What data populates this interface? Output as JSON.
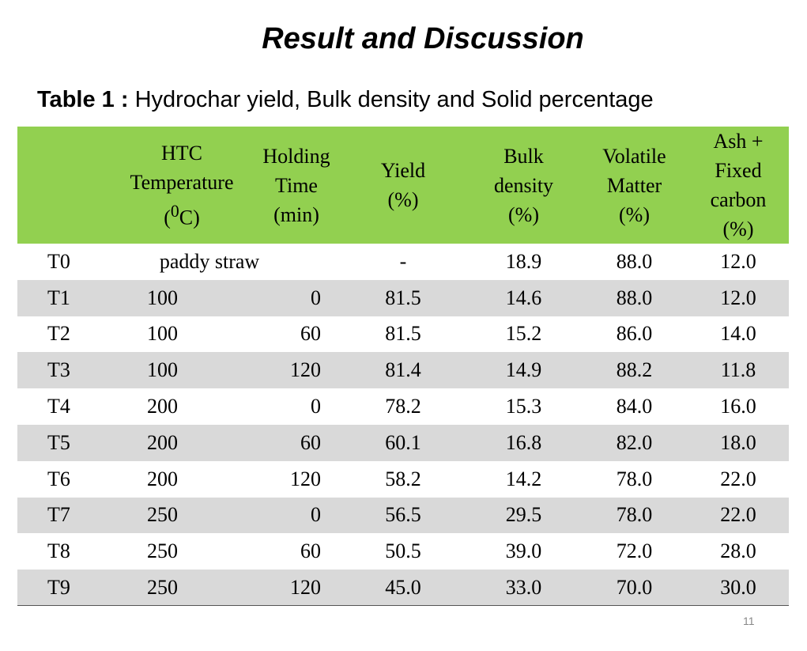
{
  "title": "Result and Discussion",
  "caption": {
    "label": "Table 1 :",
    "text": "Hydrochar yield, Bulk density and Solid percentage"
  },
  "table": {
    "header": [
      [],
      [
        "HTC",
        "Temperature",
        {
          "pre": "(",
          "sup": "0",
          "post": "C)"
        }
      ],
      [
        "Holding",
        "Time",
        "(min)"
      ],
      [
        "Yield",
        "(%)"
      ],
      [
        "Bulk",
        "density",
        "(%)"
      ],
      [
        "Volatile",
        "Matter",
        "(%)"
      ],
      [
        "Ash +",
        "Fixed",
        "carbon",
        "(%)"
      ]
    ],
    "rows": [
      [
        "T0",
        "paddy straw",
        "-",
        "18.9",
        "88.0",
        "12.0"
      ],
      [
        "T1",
        "100",
        "0",
        "81.5",
        "14.6",
        "88.0",
        "12.0"
      ],
      [
        "T2",
        "100",
        "60",
        "81.5",
        "15.2",
        "86.0",
        "14.0"
      ],
      [
        "T3",
        "100",
        "120",
        "81.4",
        "14.9",
        "88.2",
        "11.8"
      ],
      [
        "T4",
        "200",
        "0",
        "78.2",
        "15.3",
        "84.0",
        "16.0"
      ],
      [
        "T5",
        "200",
        "60",
        "60.1",
        "16.8",
        "82.0",
        "18.0"
      ],
      [
        "T6",
        "200",
        "120",
        "58.2",
        "14.2",
        "78.0",
        "22.0"
      ],
      [
        "T7",
        "250",
        "0",
        "56.5",
        "29.5",
        "78.0",
        "22.0"
      ],
      [
        "T8",
        "250",
        "60",
        "50.5",
        "39.0",
        "72.0",
        "28.0"
      ],
      [
        "T9",
        "250",
        "120",
        "45.0",
        "33.0",
        "70.0",
        "30.0"
      ]
    ]
  },
  "page_number": "11"
}
